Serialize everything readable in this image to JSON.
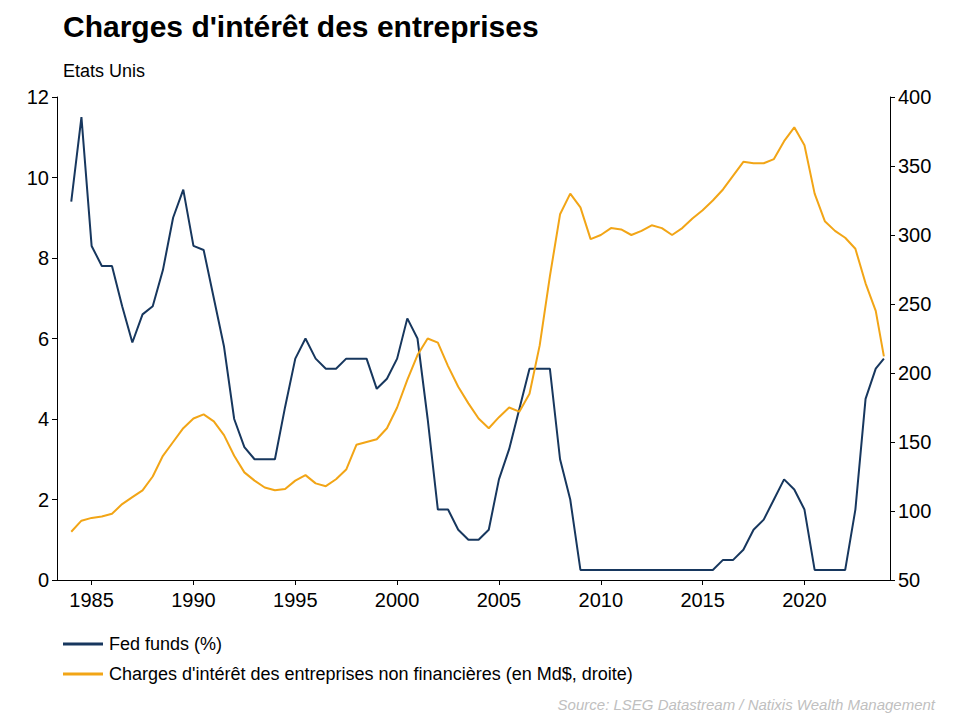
{
  "chart_data": {
    "type": "line",
    "title": "Charges d'intérêt des entreprises",
    "subtitle": "Etats Unis",
    "source": "Source: LSEG Datastream / Natixis Wealth Management",
    "x": [
      1984.0,
      1984.5,
      1985.0,
      1985.5,
      1986.0,
      1986.5,
      1987.0,
      1987.5,
      1988.0,
      1988.5,
      1989.0,
      1989.5,
      1990.0,
      1990.5,
      1991.0,
      1991.5,
      1992.0,
      1992.5,
      1993.0,
      1993.5,
      1994.0,
      1994.5,
      1995.0,
      1995.5,
      1996.0,
      1996.5,
      1997.0,
      1997.5,
      1998.0,
      1998.5,
      1999.0,
      1999.5,
      2000.0,
      2000.5,
      2001.0,
      2001.5,
      2002.0,
      2002.5,
      2003.0,
      2003.5,
      2004.0,
      2004.5,
      2005.0,
      2005.5,
      2006.0,
      2006.5,
      2007.0,
      2007.5,
      2008.0,
      2008.5,
      2009.0,
      2009.5,
      2010.0,
      2010.5,
      2011.0,
      2011.5,
      2012.0,
      2012.5,
      2013.0,
      2013.5,
      2014.0,
      2014.5,
      2015.0,
      2015.5,
      2016.0,
      2016.5,
      2017.0,
      2017.5,
      2018.0,
      2018.5,
      2019.0,
      2019.5,
      2020.0,
      2020.5,
      2021.0,
      2021.5,
      2022.0,
      2022.5,
      2023.0,
      2023.5,
      2023.9
    ],
    "series": [
      {
        "name": "Fed funds (%)",
        "color": "#17375e",
        "axis": "y",
        "values": [
          9.4,
          11.5,
          8.3,
          7.8,
          7.8,
          6.8,
          5.9,
          6.6,
          6.8,
          7.7,
          9.0,
          9.7,
          8.3,
          8.2,
          7.0,
          5.8,
          4.0,
          3.3,
          3.0,
          3.0,
          3.0,
          4.3,
          5.5,
          6.0,
          5.5,
          5.25,
          5.25,
          5.5,
          5.5,
          5.5,
          4.75,
          5.0,
          5.5,
          6.5,
          6.0,
          4.0,
          1.75,
          1.75,
          1.25,
          1.0,
          1.0,
          1.25,
          2.5,
          3.25,
          4.25,
          5.25,
          5.25,
          5.25,
          3.0,
          2.0,
          0.25,
          0.25,
          0.25,
          0.25,
          0.25,
          0.25,
          0.25,
          0.25,
          0.25,
          0.25,
          0.25,
          0.25,
          0.25,
          0.25,
          0.5,
          0.5,
          0.75,
          1.25,
          1.5,
          2.0,
          2.5,
          2.25,
          1.75,
          0.25,
          0.25,
          0.25,
          0.25,
          1.75,
          4.5,
          5.25,
          5.5
        ]
      },
      {
        "name": "Charges d'intérêt des entreprises non financières (en Md$, droite)",
        "color": "#f2a516",
        "axis": "y2",
        "values": [
          85,
          93,
          95,
          96,
          98,
          105,
          110,
          115,
          125,
          140,
          150,
          160,
          167,
          170,
          165,
          155,
          140,
          128,
          122,
          117,
          115,
          116,
          122,
          126,
          120,
          118,
          123,
          130,
          148,
          150,
          152,
          160,
          175,
          195,
          213,
          225,
          222,
          205,
          190,
          178,
          167,
          160,
          168,
          175,
          172,
          185,
          220,
          270,
          315,
          330,
          320,
          297,
          300,
          305,
          304,
          300,
          303,
          307,
          305,
          300,
          305,
          312,
          318,
          325,
          333,
          343,
          353,
          352,
          352,
          355,
          368,
          378,
          365,
          330,
          310,
          303,
          298,
          290,
          265,
          245,
          212
        ]
      }
    ],
    "xlim": [
      1983.3,
      2024.2
    ],
    "xticks": [
      1985,
      1990,
      1995,
      2000,
      2005,
      2010,
      2015,
      2020
    ],
    "ylim": [
      0,
      12
    ],
    "yticks": [
      0,
      2,
      4,
      6,
      8,
      10,
      12
    ],
    "y2lim": [
      50,
      400
    ],
    "y2ticks": [
      50,
      100,
      150,
      200,
      250,
      300,
      350,
      400
    ],
    "grid": false,
    "legend": "bottom-left"
  }
}
